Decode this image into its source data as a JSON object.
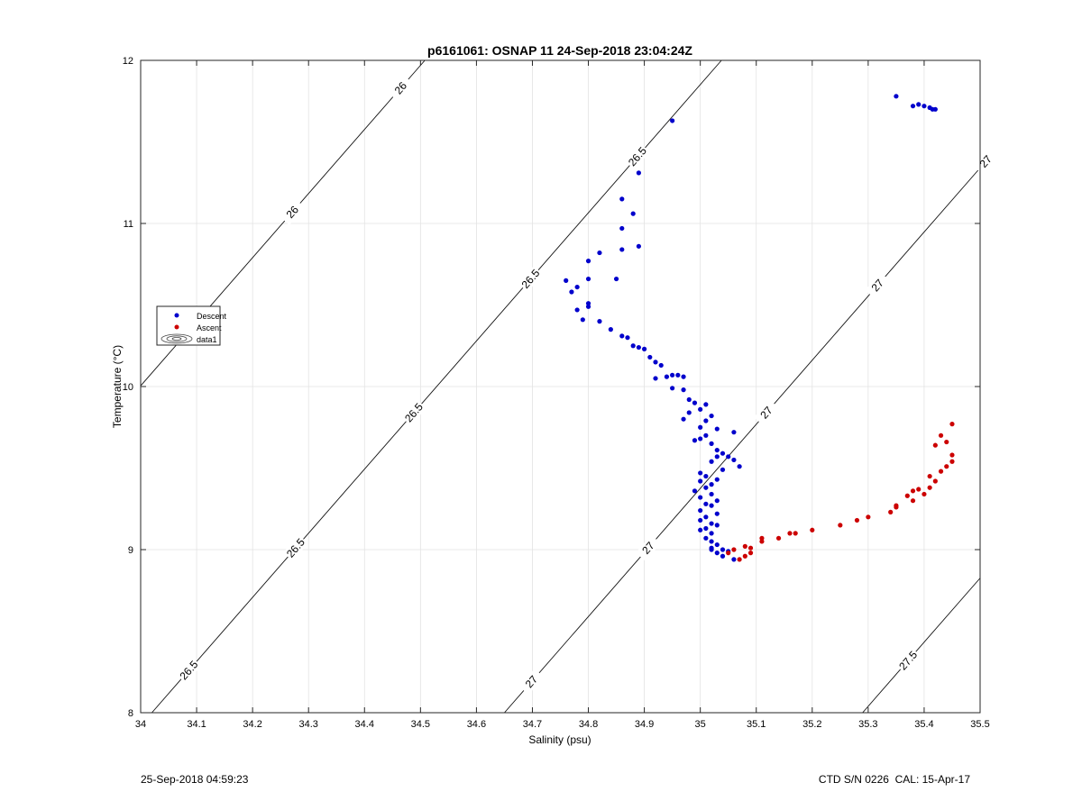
{
  "chart_data": {
    "type": "scatter",
    "title": "p6161061: OSNAP 11 24-Sep-2018 23:04:24Z",
    "xlabel": "Salinity (psu)",
    "ylabel": "Temperature (°C)",
    "xlim": [
      34,
      35.5
    ],
    "ylim": [
      8,
      12
    ],
    "xticks": [
      "34",
      "34.1",
      "34.2",
      "34.3",
      "34.4",
      "34.5",
      "34.6",
      "34.7",
      "34.8",
      "34.9",
      "35",
      "35.1",
      "35.2",
      "35.3",
      "35.4",
      "35.5"
    ],
    "yticks": [
      "8",
      "9",
      "10",
      "11",
      "12"
    ],
    "grid": true,
    "legend_position": "left",
    "legend": [
      {
        "label": "Descent",
        "marker": "dot",
        "color": "#0000cc"
      },
      {
        "label": "Ascent",
        "marker": "dot",
        "color": "#cc0000"
      },
      {
        "label": "data1",
        "marker": "contour"
      }
    ],
    "series": [
      {
        "name": "Descent",
        "color": "#0000cc",
        "points": [
          [
            34.95,
            11.63
          ],
          [
            34.89,
            11.31
          ],
          [
            34.86,
            11.15
          ],
          [
            34.88,
            11.06
          ],
          [
            34.86,
            10.97
          ],
          [
            34.89,
            10.86
          ],
          [
            34.86,
            10.84
          ],
          [
            34.82,
            10.82
          ],
          [
            34.8,
            10.77
          ],
          [
            34.76,
            10.65
          ],
          [
            34.78,
            10.61
          ],
          [
            34.77,
            10.58
          ],
          [
            34.8,
            10.66
          ],
          [
            34.85,
            10.66
          ],
          [
            34.8,
            10.51
          ],
          [
            34.8,
            10.49
          ],
          [
            34.78,
            10.47
          ],
          [
            34.79,
            10.41
          ],
          [
            34.82,
            10.4
          ],
          [
            34.84,
            10.35
          ],
          [
            34.86,
            10.31
          ],
          [
            34.87,
            10.3
          ],
          [
            34.88,
            10.25
          ],
          [
            34.89,
            10.24
          ],
          [
            34.9,
            10.23
          ],
          [
            34.91,
            10.18
          ],
          [
            34.92,
            10.15
          ],
          [
            34.93,
            10.13
          ],
          [
            34.94,
            10.06
          ],
          [
            34.95,
            10.07
          ],
          [
            34.96,
            10.07
          ],
          [
            34.97,
            10.06
          ],
          [
            34.92,
            10.05
          ],
          [
            34.95,
            9.99
          ],
          [
            34.97,
            9.98
          ],
          [
            34.98,
            9.92
          ],
          [
            34.99,
            9.9
          ],
          [
            35.01,
            9.89
          ],
          [
            34.98,
            9.84
          ],
          [
            35.0,
            9.86
          ],
          [
            35.02,
            9.82
          ],
          [
            35.01,
            9.79
          ],
          [
            34.97,
            9.8
          ],
          [
            35.0,
            9.75
          ],
          [
            35.03,
            9.74
          ],
          [
            35.06,
            9.72
          ],
          [
            35.01,
            9.7
          ],
          [
            34.99,
            9.67
          ],
          [
            35.0,
            9.68
          ],
          [
            35.02,
            9.65
          ],
          [
            35.03,
            9.61
          ],
          [
            35.04,
            9.59
          ],
          [
            35.03,
            9.57
          ],
          [
            35.05,
            9.57
          ],
          [
            35.06,
            9.55
          ],
          [
            35.02,
            9.54
          ],
          [
            35.07,
            9.51
          ],
          [
            35.04,
            9.49
          ],
          [
            35.0,
            9.47
          ],
          [
            35.01,
            9.45
          ],
          [
            35.03,
            9.43
          ],
          [
            35.0,
            9.42
          ],
          [
            35.02,
            9.4
          ],
          [
            35.01,
            9.38
          ],
          [
            34.99,
            9.36
          ],
          [
            35.02,
            9.34
          ],
          [
            35.0,
            9.32
          ],
          [
            35.03,
            9.3
          ],
          [
            35.01,
            9.28
          ],
          [
            35.02,
            9.27
          ],
          [
            35.0,
            9.24
          ],
          [
            35.03,
            9.22
          ],
          [
            35.01,
            9.2
          ],
          [
            35.0,
            9.18
          ],
          [
            35.02,
            9.16
          ],
          [
            35.03,
            9.15
          ],
          [
            35.01,
            9.13
          ],
          [
            35.0,
            9.12
          ],
          [
            35.02,
            9.1
          ],
          [
            35.01,
            9.07
          ],
          [
            35.02,
            9.05
          ],
          [
            35.03,
            9.03
          ],
          [
            35.02,
            9.01
          ],
          [
            35.04,
            9.0
          ],
          [
            35.05,
            8.99
          ],
          [
            35.03,
            8.98
          ],
          [
            35.04,
            8.96
          ],
          [
            35.06,
            8.94
          ],
          [
            35.02,
            9.0
          ],
          [
            35.35,
            11.78
          ],
          [
            35.38,
            11.72
          ],
          [
            35.39,
            11.73
          ],
          [
            35.4,
            11.72
          ],
          [
            35.41,
            11.71
          ],
          [
            35.42,
            11.7
          ],
          [
            35.415,
            11.7
          ]
        ]
      },
      {
        "name": "Ascent",
        "color": "#cc0000",
        "points": [
          [
            35.05,
            8.98
          ],
          [
            35.06,
            9.0
          ],
          [
            35.07,
            8.94
          ],
          [
            35.08,
            8.96
          ],
          [
            35.09,
            8.98
          ],
          [
            35.08,
            9.02
          ],
          [
            35.09,
            9.01
          ],
          [
            35.11,
            9.05
          ],
          [
            35.11,
            9.07
          ],
          [
            35.14,
            9.07
          ],
          [
            35.16,
            9.1
          ],
          [
            35.17,
            9.1
          ],
          [
            35.2,
            9.12
          ],
          [
            35.25,
            9.15
          ],
          [
            35.28,
            9.18
          ],
          [
            35.3,
            9.2
          ],
          [
            35.34,
            9.23
          ],
          [
            35.35,
            9.26
          ],
          [
            35.35,
            9.27
          ],
          [
            35.38,
            9.3
          ],
          [
            35.37,
            9.33
          ],
          [
            35.38,
            9.36
          ],
          [
            35.4,
            9.34
          ],
          [
            35.39,
            9.37
          ],
          [
            35.41,
            9.38
          ],
          [
            35.42,
            9.42
          ],
          [
            35.41,
            9.45
          ],
          [
            35.43,
            9.48
          ],
          [
            35.44,
            9.51
          ],
          [
            35.45,
            9.54
          ],
          [
            35.45,
            9.58
          ],
          [
            35.44,
            9.66
          ],
          [
            35.43,
            9.7
          ],
          [
            35.45,
            9.77
          ],
          [
            35.42,
            9.64
          ]
        ]
      }
    ],
    "contours": [
      {
        "label": "26",
        "labels": [
          "26",
          "26"
        ]
      },
      {
        "label": "26.5",
        "labels": [
          "26.5",
          "26.5",
          "26.5",
          "26.5",
          "26.5"
        ]
      },
      {
        "label": "27",
        "labels": [
          "27",
          "27",
          "27",
          "27",
          "27"
        ]
      },
      {
        "label": "27.5",
        "labels": [
          "27.5"
        ]
      }
    ]
  },
  "footer": {
    "timestamp": "25-Sep-2018 04:59:23",
    "ctd_info": "CTD S/N 0226  CAL: 15-Apr-17"
  }
}
